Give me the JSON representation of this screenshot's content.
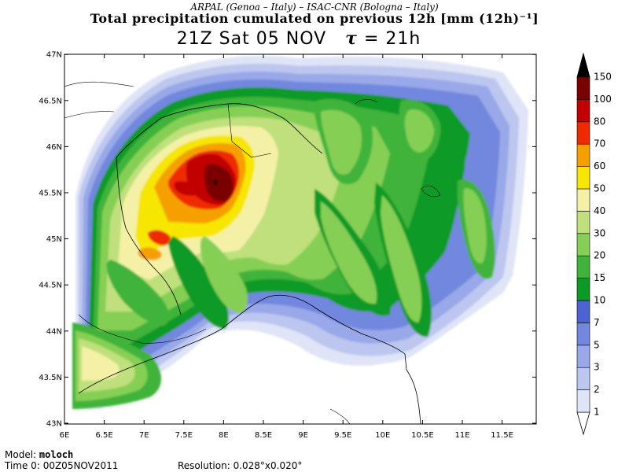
{
  "header": {
    "credit": "ARPAL (Genoa – Italy)   –   ISAC-CNR (Bologna – Italy)",
    "title": "Total precipitation cumulated on previous 12h [mm (12h)⁻¹]",
    "time_label": "21Z Sat 05 NOV",
    "tau_symbol": "τ",
    "tau_value": "= 21h"
  },
  "footer": {
    "model_label": "Model:",
    "model_value": "moloch",
    "time0_label": "Time 0:",
    "time0_value": "00Z05NOV2011",
    "resolution_label": "Resolution:",
    "resolution_value": "0.028°x0.020°"
  },
  "map": {
    "lon_labels": [
      "6E",
      "6.5E",
      "7E",
      "7.5E",
      "8E",
      "8.5E",
      "9E",
      "9.5E",
      "10E",
      "10.5E",
      "11E",
      "11.5E"
    ],
    "lat_labels": [
      "43N",
      "43.5N",
      "44N",
      "44.5N",
      "45N",
      "45.5N",
      "46N",
      "46.5N",
      "47N"
    ]
  },
  "legend": {
    "levels": [
      "1",
      "2",
      "3",
      "5",
      "7",
      "10",
      "15",
      "20",
      "30",
      "40",
      "50",
      "60",
      "70",
      "80",
      "100",
      "150"
    ],
    "colors": [
      "#ffffff",
      "#dfe4f7",
      "#bcc6ef",
      "#98a8e8",
      "#7287de",
      "#4c63d4",
      "#0c9a26",
      "#3fb33b",
      "#86cf55",
      "#bfe07c",
      "#f4f1a7",
      "#f6e600",
      "#f6a000",
      "#ef2a00",
      "#c20000",
      "#7a0000",
      "#000000"
    ]
  }
}
